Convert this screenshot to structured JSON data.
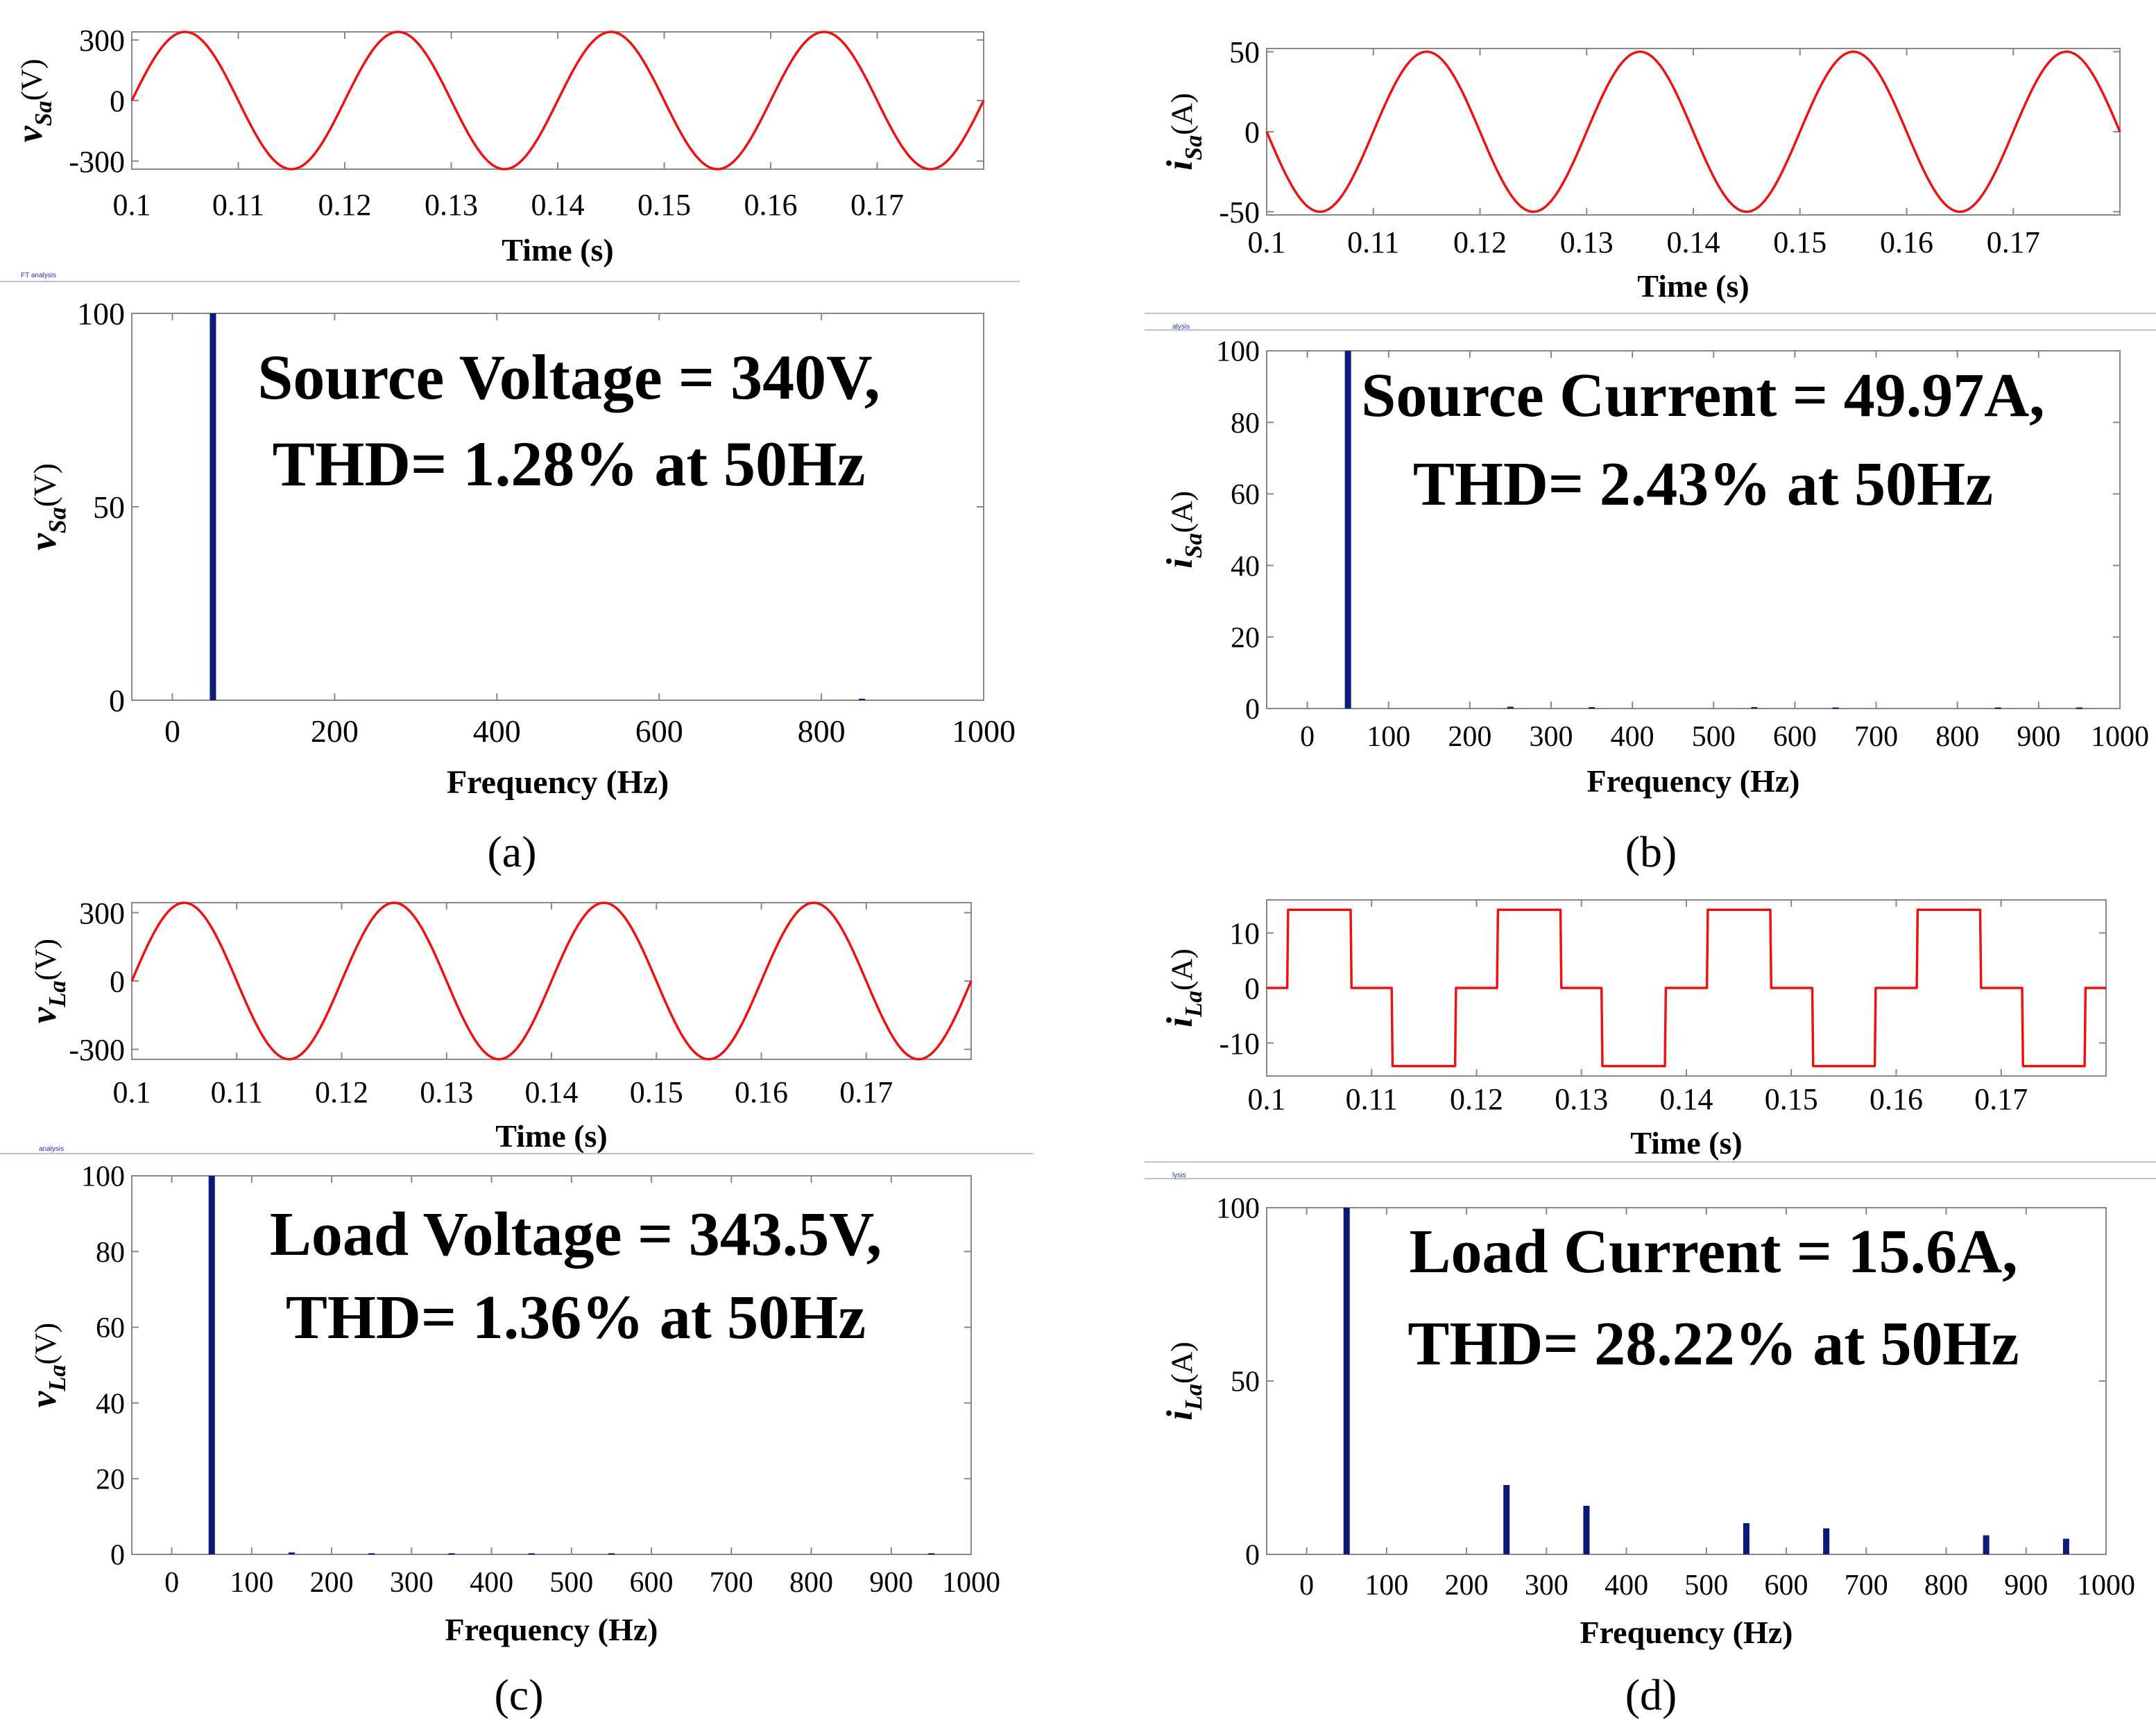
{
  "colors": {
    "waveform": "#ee1111",
    "spectrum": "#0a1a7a",
    "frame": "#888888",
    "text": "#000000",
    "toolbar_text": "#2233aa",
    "separator": "#b8c0d8"
  },
  "figure": {
    "panel_labels": [
      "(a)",
      "(b)",
      "(c)",
      "(d)"
    ],
    "toolbar_labels": [
      "FT analysis",
      "alysis",
      "analysis",
      "lysis"
    ]
  },
  "chart_data": [
    {
      "id": "a-time",
      "type": "line",
      "waveform": "sine",
      "xlabel": "Time (s)",
      "ylabel_var": "v",
      "ylabel_sub": "Sa",
      "ylabel_unit": "(V)",
      "xlim": [
        0.1,
        0.18
      ],
      "ylim": [
        -340,
        340
      ],
      "xticks": [
        0.1,
        0.11,
        0.12,
        0.13,
        0.14,
        0.15,
        0.16,
        0.17
      ],
      "xtick_labels": [
        "0.1",
        "0.11",
        "0.12",
        "0.13",
        "0.14",
        "0.15",
        "0.16",
        "0.17"
      ],
      "yticks": [
        -300,
        0,
        300
      ],
      "ytick_labels": [
        "-300",
        "0",
        "300"
      ],
      "amplitude": 340,
      "frequency_hz": 50,
      "phase": 0
    },
    {
      "id": "a-fft",
      "type": "bar",
      "xlabel": "Frequency (Hz)",
      "ylabel_var": "v",
      "ylabel_sub": "Sa",
      "ylabel_unit": "(V)",
      "xlim": [
        -50,
        1000
      ],
      "ylim": [
        0,
        100
      ],
      "xticks": [
        0,
        200,
        400,
        600,
        800,
        1000
      ],
      "xtick_labels": [
        "0",
        "200",
        "400",
        "600",
        "800",
        "1000"
      ],
      "yticks": [
        0,
        50,
        100
      ],
      "ytick_labels": [
        "0",
        "50",
        "100"
      ],
      "bars": [
        {
          "x": 50,
          "y": 100
        },
        {
          "x": 850,
          "y": 0.4
        }
      ],
      "annotation": [
        "Source Voltage = 340V,",
        "THD= 1.28% at 50Hz"
      ]
    },
    {
      "id": "b-time",
      "type": "line",
      "waveform": "sine",
      "xlabel": "Time (s)",
      "ylabel_var": "i",
      "ylabel_sub": "Sa",
      "ylabel_unit": "(A)",
      "xlim": [
        0.1,
        0.18
      ],
      "ylim": [
        -52,
        52
      ],
      "xticks": [
        0.1,
        0.11,
        0.12,
        0.13,
        0.14,
        0.15,
        0.16,
        0.17
      ],
      "xtick_labels": [
        "0.1",
        "0.11",
        "0.12",
        "0.13",
        "0.14",
        "0.15",
        "0.16",
        "0.17"
      ],
      "yticks": [
        -50,
        0,
        50
      ],
      "ytick_labels": [
        "-50",
        "0",
        "50"
      ],
      "amplitude": 50,
      "frequency_hz": 50,
      "phase": 3.14159
    },
    {
      "id": "b-fft",
      "type": "bar",
      "xlabel": "Frequency (Hz)",
      "ylabel_var": "i",
      "ylabel_sub": "Sa",
      "ylabel_unit": "(A)",
      "xlim": [
        -50,
        1000
      ],
      "ylim": [
        0,
        100
      ],
      "xticks": [
        0,
        100,
        200,
        300,
        400,
        500,
        600,
        700,
        800,
        900,
        1000
      ],
      "xtick_labels": [
        "0",
        "100",
        "200",
        "300",
        "400",
        "500",
        "600",
        "700",
        "800",
        "900",
        "1000"
      ],
      "yticks": [
        0,
        20,
        40,
        60,
        80,
        100
      ],
      "ytick_labels": [
        "0",
        "20",
        "40",
        "60",
        "80",
        "100"
      ],
      "bars": [
        {
          "x": 50,
          "y": 100
        },
        {
          "x": 250,
          "y": 0.5
        },
        {
          "x": 350,
          "y": 0.4
        },
        {
          "x": 550,
          "y": 0.4
        },
        {
          "x": 650,
          "y": 0.3
        },
        {
          "x": 850,
          "y": 0.3
        },
        {
          "x": 950,
          "y": 0.3
        }
      ],
      "annotation": [
        "Source Current = 49.97A,",
        "THD= 2.43% at 50Hz"
      ]
    },
    {
      "id": "c-time",
      "type": "line",
      "waveform": "sine",
      "xlabel": "Time (s)",
      "ylabel_var": "v",
      "ylabel_sub": "La",
      "ylabel_unit": "(V)",
      "xlim": [
        0.1,
        0.18
      ],
      "ylim": [
        -344,
        344
      ],
      "xticks": [
        0.1,
        0.11,
        0.12,
        0.13,
        0.14,
        0.15,
        0.16,
        0.17
      ],
      "xtick_labels": [
        "0.1",
        "0.11",
        "0.12",
        "0.13",
        "0.14",
        "0.15",
        "0.16",
        "0.17"
      ],
      "yticks": [
        -300,
        0,
        300
      ],
      "ytick_labels": [
        "-300",
        "0",
        "300"
      ],
      "amplitude": 343.5,
      "frequency_hz": 50,
      "phase": 0
    },
    {
      "id": "c-fft",
      "type": "bar",
      "xlabel": "Frequency (Hz)",
      "ylabel_var": "v",
      "ylabel_sub": "La",
      "ylabel_unit": "(V)",
      "xlim": [
        -50,
        1000
      ],
      "ylim": [
        0,
        100
      ],
      "xticks": [
        0,
        100,
        200,
        300,
        400,
        500,
        600,
        700,
        800,
        900,
        1000
      ],
      "xtick_labels": [
        "0",
        "100",
        "200",
        "300",
        "400",
        "500",
        "600",
        "700",
        "800",
        "900",
        "1000"
      ],
      "yticks": [
        0,
        20,
        40,
        60,
        80,
        100
      ],
      "ytick_labels": [
        "0",
        "20",
        "40",
        "60",
        "80",
        "100"
      ],
      "bars": [
        {
          "x": 50,
          "y": 100
        },
        {
          "x": 150,
          "y": 0.5
        },
        {
          "x": 250,
          "y": 0.3
        },
        {
          "x": 350,
          "y": 0.3
        },
        {
          "x": 450,
          "y": 0.3
        },
        {
          "x": 550,
          "y": 0.3
        },
        {
          "x": 950,
          "y": 0.3
        }
      ],
      "annotation": [
        "Load Voltage = 343.5V,",
        "THD= 1.36% at 50Hz"
      ]
    },
    {
      "id": "d-time",
      "type": "line",
      "waveform": "quasi-square",
      "xlabel": "Time (s)",
      "ylabel_var": "i",
      "ylabel_sub": "La",
      "ylabel_unit": "(A)",
      "xlim": [
        0.1,
        0.18
      ],
      "ylim": [
        -16,
        16
      ],
      "xticks": [
        0.1,
        0.11,
        0.12,
        0.13,
        0.14,
        0.15,
        0.16,
        0.17
      ],
      "xtick_labels": [
        "0.1",
        "0.11",
        "0.12",
        "0.13",
        "0.14",
        "0.15",
        "0.16",
        "0.17"
      ],
      "yticks": [
        -10,
        0,
        10
      ],
      "ytick_labels": [
        "-10",
        "0",
        "10"
      ],
      "amplitude": 14.2,
      "frequency_hz": 50,
      "pulse_start": 0.002,
      "pulse_width": 0.006,
      "period": 0.02
    },
    {
      "id": "d-fft",
      "type": "bar",
      "xlabel": "Frequency (Hz)",
      "ylabel_var": "i",
      "ylabel_sub": "La",
      "ylabel_unit": "(A)",
      "xlim": [
        -50,
        1000
      ],
      "ylim": [
        0,
        100
      ],
      "xticks": [
        0,
        100,
        200,
        300,
        400,
        500,
        600,
        700,
        800,
        900,
        1000
      ],
      "xtick_labels": [
        "0",
        "100",
        "200",
        "300",
        "400",
        "500",
        "600",
        "700",
        "800",
        "900",
        "1000"
      ],
      "yticks": [
        0,
        50,
        100
      ],
      "ytick_labels": [
        "0",
        "50",
        "100"
      ],
      "bars": [
        {
          "x": 50,
          "y": 100
        },
        {
          "x": 250,
          "y": 20
        },
        {
          "x": 350,
          "y": 14
        },
        {
          "x": 550,
          "y": 9
        },
        {
          "x": 650,
          "y": 7.5
        },
        {
          "x": 850,
          "y": 5.5
        },
        {
          "x": 950,
          "y": 4.5
        }
      ],
      "annotation": [
        "Load Current = 15.6A,",
        "THD= 28.22% at 50Hz"
      ]
    }
  ]
}
